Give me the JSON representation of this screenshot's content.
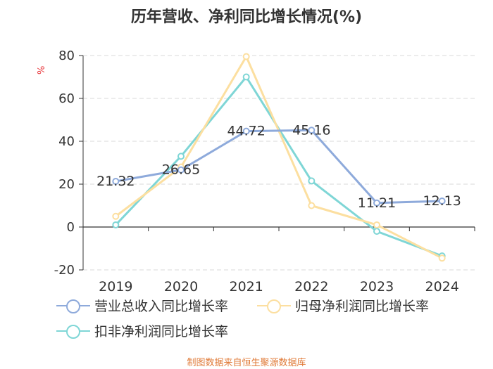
{
  "chart_data": {
    "type": "line",
    "title": "历年营收、净利同比增长情况(%)",
    "ylabel": "%",
    "categories": [
      "2019",
      "2020",
      "2021",
      "2022",
      "2023",
      "2024"
    ],
    "ylim": [
      -20,
      80
    ],
    "yticks": [
      80,
      60,
      40,
      20,
      0,
      -20
    ],
    "grid": true,
    "series": [
      {
        "name": "营业总收入同比增长率",
        "color": "#8eaadb",
        "values": [
          21.32,
          26.65,
          44.72,
          45.16,
          11.21,
          12.13
        ],
        "labels": [
          "21.32",
          "26.65",
          "44.72",
          "45.16",
          "11.21",
          "12.13"
        ]
      },
      {
        "name": "归母净利润同比增长率",
        "color": "#fcdfa0",
        "values": [
          5.0,
          28.0,
          79.5,
          10.0,
          1.0,
          -14.5
        ]
      },
      {
        "name": "扣非净利润同比增长率",
        "color": "#7fd6d6",
        "values": [
          1.0,
          33.0,
          70.0,
          21.5,
          -2.0,
          -13.5
        ]
      }
    ]
  },
  "source": "制图数据来自恒生聚源数据库"
}
